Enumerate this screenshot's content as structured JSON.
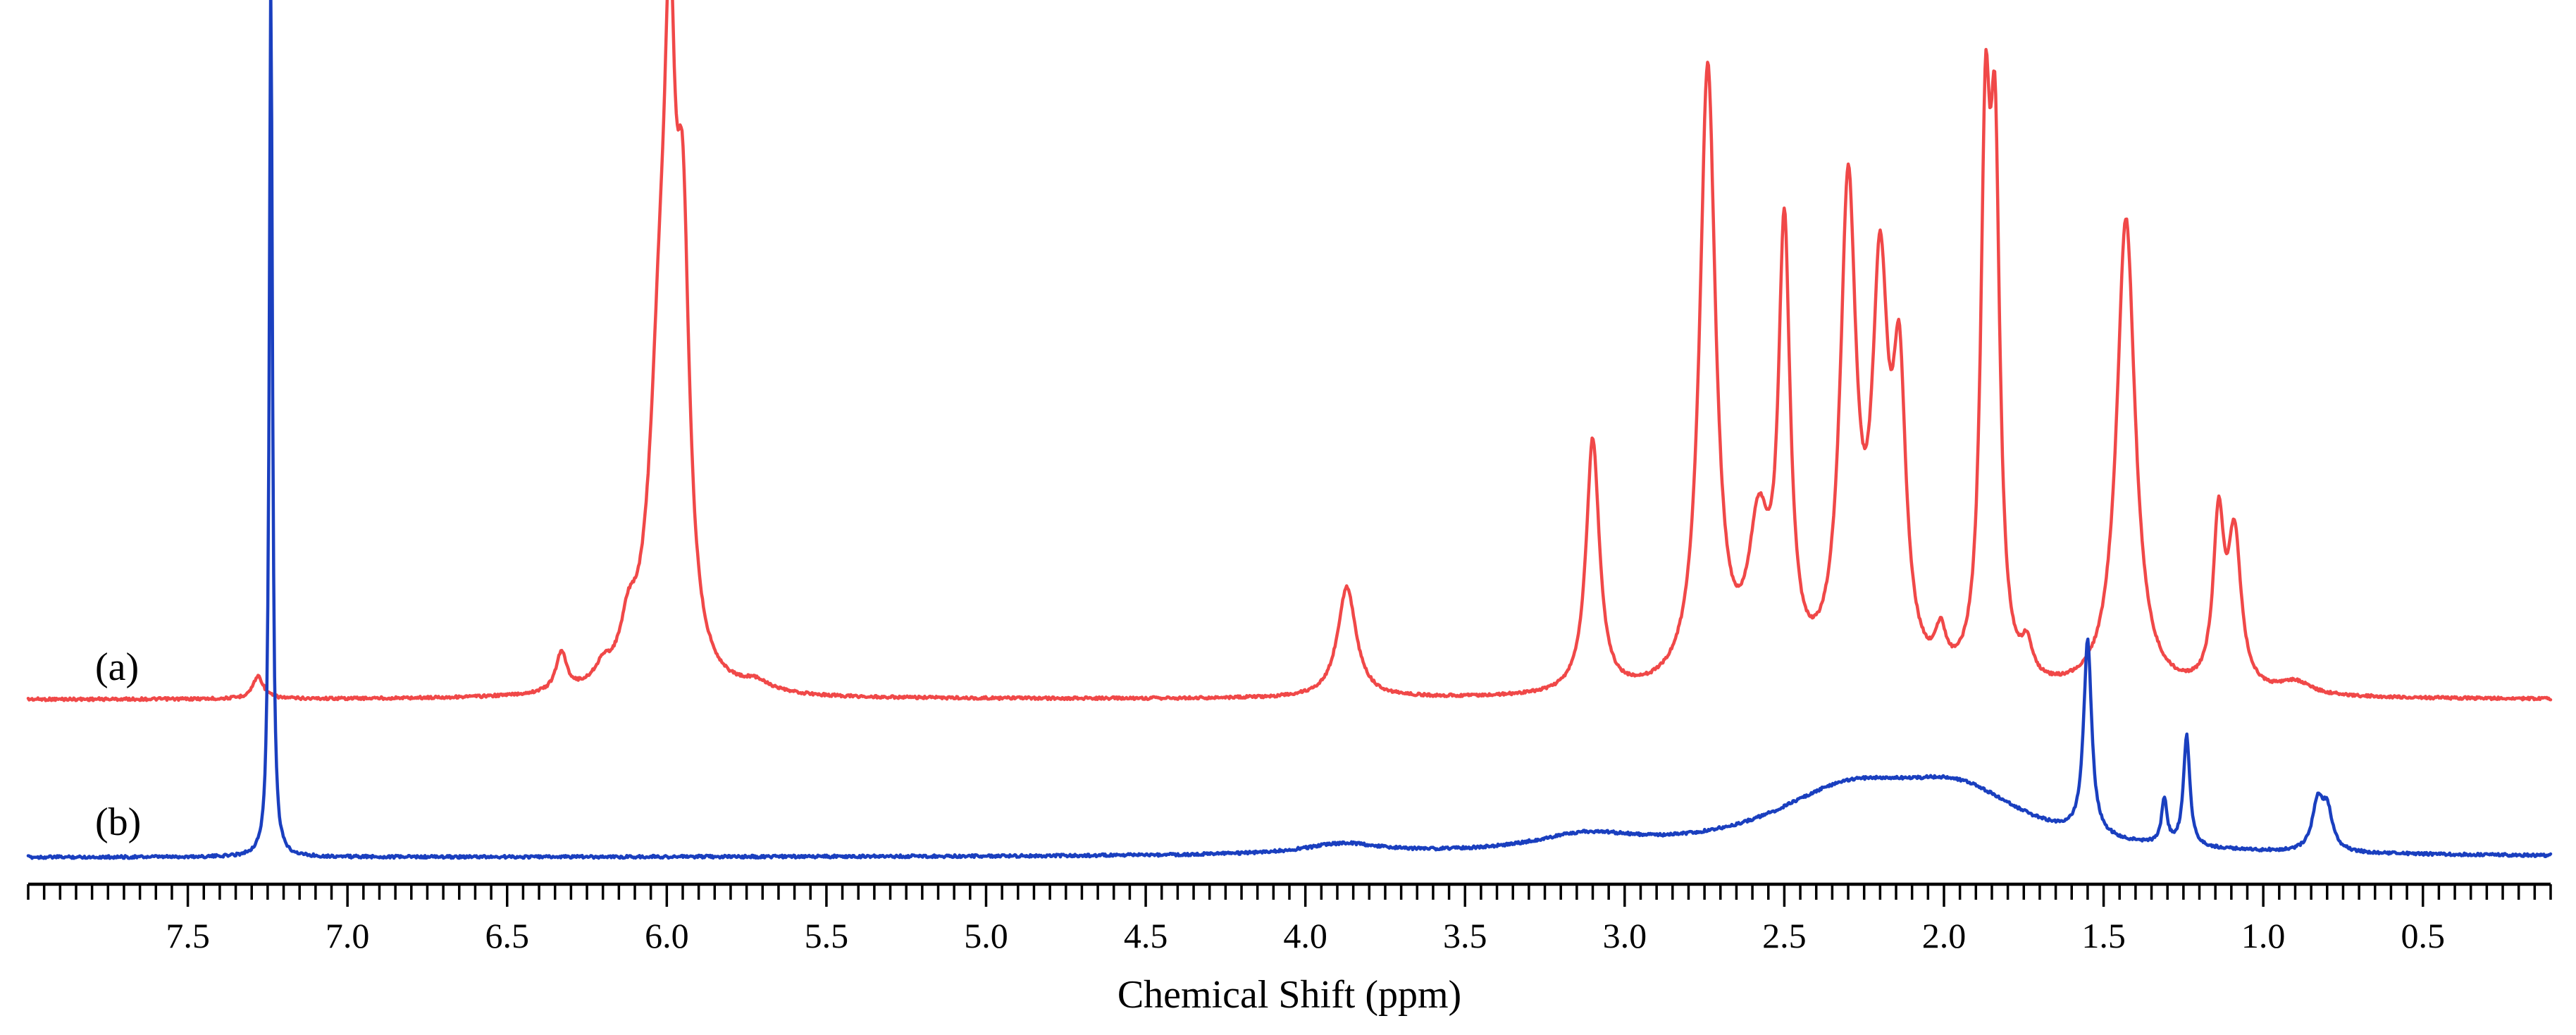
{
  "chart_data": {
    "type": "line",
    "title": "",
    "xlabel": "Chemical Shift (ppm)",
    "ylabel": "",
    "xlim": [
      8.0,
      0.1
    ],
    "x_reversed": true,
    "tick_labels": [
      "7.5",
      "7.0",
      "6.5",
      "6.0",
      "5.5",
      "5.0",
      "4.5",
      "4.0",
      "3.5",
      "3.0",
      "2.5",
      "2.0",
      "1.5",
      "1.0",
      "0.5"
    ],
    "tick_values": [
      7.5,
      7.0,
      6.5,
      6.0,
      5.5,
      5.0,
      4.5,
      4.0,
      3.5,
      3.0,
      2.5,
      2.0,
      1.5,
      1.0,
      0.5
    ],
    "minor_tick_step": 0.05,
    "series": [
      {
        "name": "(a)",
        "color": "#f04848",
        "baseline": 0.0,
        "peaks": [
          {
            "shift": 7.28,
            "height": 0.035,
            "width": 0.02
          },
          {
            "shift": 6.33,
            "height": 0.06,
            "width": 0.02
          },
          {
            "shift": 6.2,
            "height": 0.025,
            "width": 0.03
          },
          {
            "shift": 6.12,
            "height": 0.07,
            "width": 0.03
          },
          {
            "shift": 6.02,
            "height": 0.48,
            "width": 0.04
          },
          {
            "shift": 5.99,
            "height": 0.68,
            "width": 0.02
          },
          {
            "shift": 5.95,
            "height": 0.6,
            "width": 0.025
          },
          {
            "shift": 5.72,
            "height": 0.015,
            "width": 0.05
          },
          {
            "shift": 3.87,
            "height": 0.17,
            "width": 0.035
          },
          {
            "shift": 3.1,
            "height": 0.39,
            "width": 0.025
          },
          {
            "shift": 2.74,
            "height": 0.95,
            "width": 0.03
          },
          {
            "shift": 2.58,
            "height": 0.22,
            "width": 0.04
          },
          {
            "shift": 2.5,
            "height": 0.67,
            "width": 0.022
          },
          {
            "shift": 2.3,
            "height": 0.74,
            "width": 0.03
          },
          {
            "shift": 2.2,
            "height": 0.58,
            "width": 0.03
          },
          {
            "shift": 2.14,
            "height": 0.42,
            "width": 0.025
          },
          {
            "shift": 2.01,
            "height": 0.06,
            "width": 0.02
          },
          {
            "shift": 1.87,
            "height": 0.77,
            "width": 0.018
          },
          {
            "shift": 1.84,
            "height": 0.73,
            "width": 0.018
          },
          {
            "shift": 1.74,
            "height": 0.05,
            "width": 0.02
          },
          {
            "shift": 1.43,
            "height": 0.73,
            "width": 0.035
          },
          {
            "shift": 1.14,
            "height": 0.25,
            "width": 0.02
          },
          {
            "shift": 1.09,
            "height": 0.23,
            "width": 0.025
          },
          {
            "shift": 0.9,
            "height": 0.02,
            "width": 0.06
          }
        ]
      },
      {
        "name": "(b)",
        "color": "#1a3fbf",
        "baseline": 0.0,
        "peaks": [
          {
            "shift": 7.24,
            "height": 1.35,
            "width": 0.006
          },
          {
            "shift": 3.88,
            "height": 0.016,
            "width": 0.15
          },
          {
            "shift": 3.12,
            "height": 0.025,
            "width": 0.2
          },
          {
            "shift": 2.3,
            "height": 0.09,
            "width": 0.3
          },
          {
            "shift": 1.95,
            "height": 0.08,
            "width": 0.25
          },
          {
            "shift": 1.55,
            "height": 0.3,
            "width": 0.015
          },
          {
            "shift": 1.31,
            "height": 0.07,
            "width": 0.01
          },
          {
            "shift": 1.24,
            "height": 0.17,
            "width": 0.012
          },
          {
            "shift": 0.83,
            "height": 0.07,
            "width": 0.02
          },
          {
            "shift": 0.8,
            "height": 0.06,
            "width": 0.02
          }
        ]
      }
    ]
  }
}
